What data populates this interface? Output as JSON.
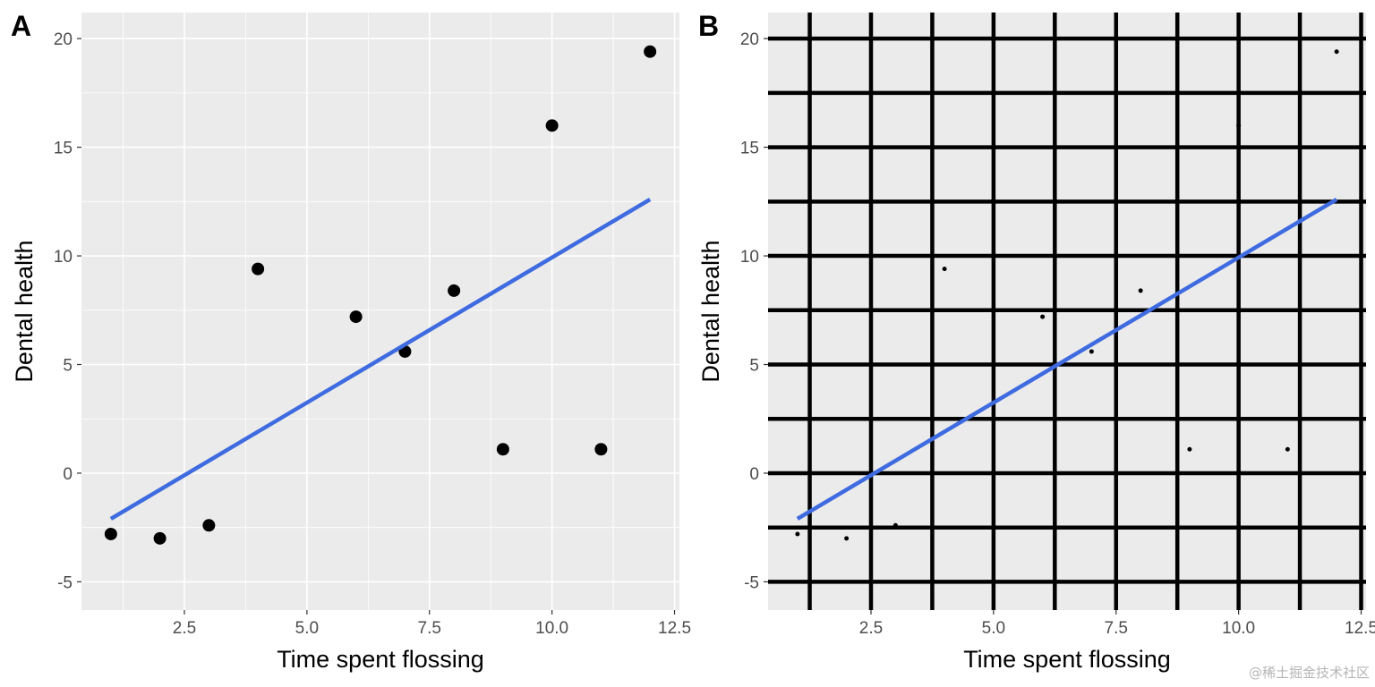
{
  "chart_data": [
    {
      "type": "scatter",
      "panel_label": "A",
      "xlabel": "Time spent flossing",
      "ylabel": "Dental health",
      "xlim": [
        0.4,
        12.6
      ],
      "ylim": [
        -6.3,
        21.2
      ],
      "x_ticks": [
        2.5,
        5.0,
        7.5,
        10.0,
        12.5
      ],
      "x_tick_labels": [
        "2.5",
        "5.0",
        "7.5",
        "10.0",
        "12.5"
      ],
      "y_ticks": [
        -5,
        0,
        5,
        10,
        15,
        20
      ],
      "y_tick_labels": [
        "-5",
        "0",
        "5",
        "10",
        "15",
        "20"
      ],
      "grid": "default",
      "points": [
        {
          "x": 1,
          "y": -2.8
        },
        {
          "x": 2,
          "y": -3.0
        },
        {
          "x": 3,
          "y": -2.4
        },
        {
          "x": 4,
          "y": 9.4
        },
        {
          "x": 6,
          "y": 7.2
        },
        {
          "x": 7,
          "y": 5.6
        },
        {
          "x": 8,
          "y": 8.4
        },
        {
          "x": 9,
          "y": 1.1
        },
        {
          "x": 10,
          "y": 16.0
        },
        {
          "x": 11,
          "y": 1.1
        },
        {
          "x": 12,
          "y": 19.4
        }
      ],
      "trend_line": {
        "x": [
          1,
          12
        ],
        "y": [
          -2.1,
          12.6
        ],
        "color": "#3f6be0"
      },
      "point_color": "#000000",
      "panel_color": "#ebebeb",
      "grid_color": "#ffffff"
    },
    {
      "type": "scatter",
      "panel_label": "B",
      "xlabel": "Time spent flossing",
      "ylabel": "Dental health",
      "xlim": [
        0.4,
        12.6
      ],
      "ylim": [
        -6.3,
        21.2
      ],
      "x_ticks": [
        2.5,
        5.0,
        7.5,
        10.0,
        12.5
      ],
      "x_tick_labels": [
        "2.5",
        "5.0",
        "7.5",
        "10.0",
        "12.5"
      ],
      "y_ticks": [
        -5,
        0,
        5,
        10,
        15,
        20
      ],
      "y_tick_labels": [
        "-5",
        "0",
        "5",
        "10",
        "15",
        "20"
      ],
      "grid": "heavy",
      "points": [
        {
          "x": 1,
          "y": -2.8
        },
        {
          "x": 2,
          "y": -3.0
        },
        {
          "x": 3,
          "y": -2.4
        },
        {
          "x": 4,
          "y": 9.4
        },
        {
          "x": 6,
          "y": 7.2
        },
        {
          "x": 7,
          "y": 5.6
        },
        {
          "x": 8,
          "y": 8.4
        },
        {
          "x": 9,
          "y": 1.1
        },
        {
          "x": 10,
          "y": 16.0
        },
        {
          "x": 11,
          "y": 1.1
        },
        {
          "x": 12,
          "y": 19.4
        }
      ],
      "trend_line": {
        "x": [
          1,
          12
        ],
        "y": [
          -2.1,
          12.6
        ],
        "color": "#3f6be0"
      },
      "point_color": "#000000",
      "panel_color": "#ebebeb",
      "grid_color": "#000000"
    }
  ],
  "watermark": "@稀土掘金技术社区"
}
